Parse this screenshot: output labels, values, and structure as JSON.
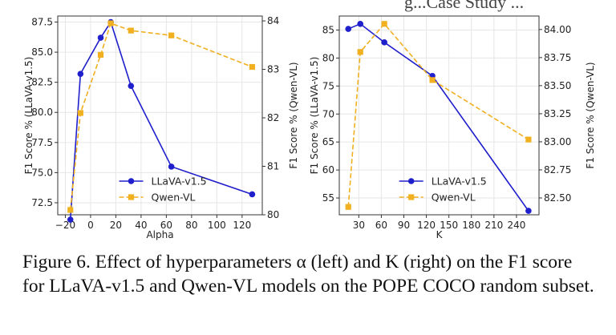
{
  "header_fragment": "g...Case Study ...",
  "caption": "Figure 6.  Effect of hyperparameters α (left) and K (right) on the F1 score for LLaVA-v1.5 and Qwen-VL models on the POPE COCO random subset.",
  "colors": {
    "llava": "#1f1fcc",
    "qwen": "#f0b020",
    "grid": "#e6e6e6",
    "axis": "#333333"
  },
  "chart_data": [
    {
      "type": "line",
      "xlabel": "Alpha",
      "ylabel_left": "F1 Score % (LLaVA-v1.5)",
      "ylabel_right": "F1 Score % (Qwen-VL)",
      "xlim": [
        -26,
        136
      ],
      "ylim_left": [
        71.5,
        88.0
      ],
      "ylim_right": [
        80.0,
        84.1
      ],
      "xticks": [
        -20,
        0,
        20,
        40,
        60,
        80,
        100,
        120
      ],
      "yticks_left": [
        72.5,
        75.0,
        77.5,
        80.0,
        82.5,
        85.0,
        87.5
      ],
      "yticks_right": [
        80,
        81,
        82,
        83,
        84
      ],
      "legend_position": "lower-center",
      "grid": true,
      "series": [
        {
          "name": "LLaVA-v1.5",
          "axis": "left",
          "style": "solid",
          "marker": "circle",
          "x": [
            -16,
            -8,
            8,
            16,
            32,
            64,
            128
          ],
          "y": [
            71.1,
            83.2,
            86.2,
            87.5,
            82.2,
            75.5,
            73.2
          ]
        },
        {
          "name": "Qwen-VL",
          "axis": "right",
          "style": "dashed",
          "marker": "square",
          "x": [
            -16,
            -8,
            8,
            16,
            32,
            64,
            128
          ],
          "y": [
            80.1,
            82.1,
            83.3,
            83.95,
            83.8,
            83.7,
            83.05
          ]
        }
      ]
    },
    {
      "type": "line",
      "xlabel": "K",
      "ylabel_left": "F1 Score % (LLaVA-v1.5)",
      "ylabel_right": "F1 Score % (Qwen-VL)",
      "xlim": [
        4,
        270
      ],
      "ylim_left": [
        52.0,
        87.5
      ],
      "ylim_right": [
        82.35,
        84.12
      ],
      "xticks": [
        30,
        60,
        90,
        120,
        150,
        180,
        210,
        240
      ],
      "yticks_left": [
        55,
        60,
        65,
        70,
        75,
        80,
        85
      ],
      "yticks_right": [
        "82.50",
        "82.75",
        "83.00",
        "83.25",
        "83.50",
        "83.75",
        "84.00"
      ],
      "legend_position": "lower-center",
      "grid": true,
      "series": [
        {
          "name": "LLaVA-v1.5",
          "axis": "left",
          "style": "solid",
          "marker": "circle",
          "x": [
            16,
            32,
            64,
            128,
            256
          ],
          "y": [
            85.2,
            86.1,
            82.8,
            76.8,
            52.7
          ]
        },
        {
          "name": "Qwen-VL",
          "axis": "right",
          "style": "dashed",
          "marker": "square",
          "x": [
            16,
            32,
            64,
            128,
            256
          ],
          "y": [
            82.42,
            83.8,
            84.05,
            83.55,
            83.02
          ]
        }
      ]
    }
  ]
}
